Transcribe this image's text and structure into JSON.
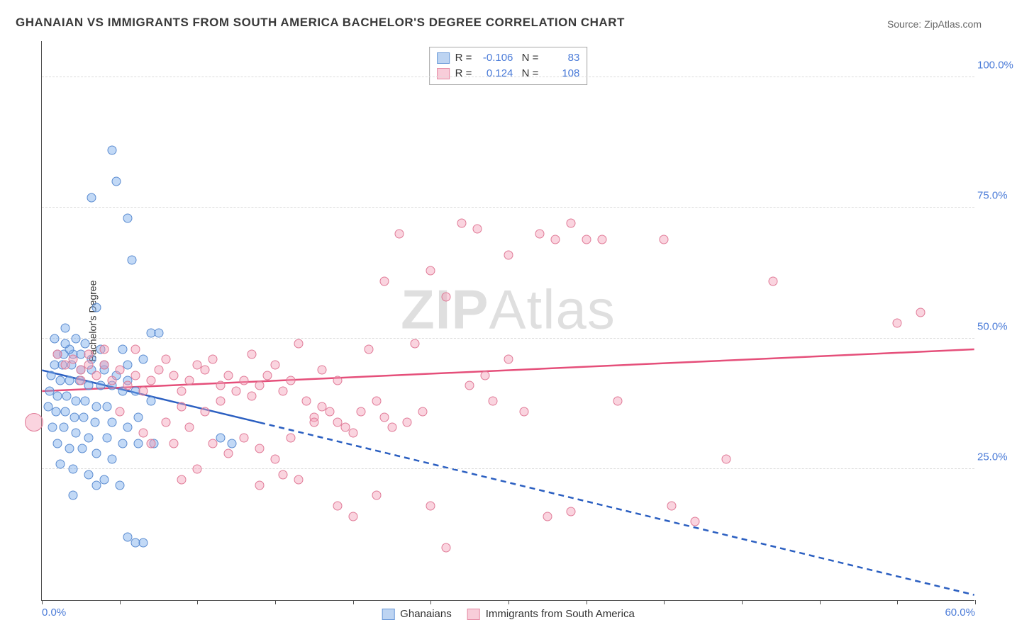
{
  "title": "GHANAIAN VS IMMIGRANTS FROM SOUTH AMERICA BACHELOR'S DEGREE CORRELATION CHART",
  "source": "Source: ZipAtlas.com",
  "ylabel": "Bachelor's Degree",
  "watermark": {
    "bold": "ZIP",
    "rest": "Atlas"
  },
  "chart": {
    "type": "scatter",
    "xlim": [
      0,
      60
    ],
    "ylim": [
      0,
      107
    ],
    "y_ticks": [
      {
        "v": 25,
        "label": "25.0%"
      },
      {
        "v": 50,
        "label": "50.0%"
      },
      {
        "v": 75,
        "label": "75.0%"
      },
      {
        "v": 100,
        "label": "100.0%"
      }
    ],
    "x_ticks": [
      {
        "v": 0,
        "label": "0.0%"
      },
      {
        "v": 5,
        "label": ""
      },
      {
        "v": 10,
        "label": ""
      },
      {
        "v": 15,
        "label": ""
      },
      {
        "v": 20,
        "label": ""
      },
      {
        "v": 25,
        "label": ""
      },
      {
        "v": 30,
        "label": ""
      },
      {
        "v": 35,
        "label": ""
      },
      {
        "v": 40,
        "label": ""
      },
      {
        "v": 45,
        "label": ""
      },
      {
        "v": 50,
        "label": ""
      },
      {
        "v": 55,
        "label": ""
      },
      {
        "v": 60,
        "label": "60.0%"
      }
    ],
    "background_color": "#ffffff",
    "grid_color": "#dcdcdc",
    "axis_color": "#505050",
    "marker_size": 13,
    "marker_border": 1,
    "series": [
      {
        "name": "Ghanaians",
        "fill": "rgba(120,170,235,0.45)",
        "stroke": "#5a8bd0",
        "swatch_fill": "#bdd4f2",
        "swatch_stroke": "#6a99d8",
        "R": "-0.106",
        "N": "83",
        "trend": {
          "color": "#2b5fc1",
          "width": 2.5,
          "solid": {
            "x1": 0,
            "y1": 44,
            "x2": 14,
            "y2": 34
          },
          "dashed": {
            "x1": 14,
            "y1": 34,
            "x2": 60,
            "y2": 1
          }
        },
        "points": [
          [
            4.5,
            86
          ],
          [
            4.8,
            80
          ],
          [
            3.2,
            77
          ],
          [
            5.5,
            73
          ],
          [
            5.8,
            65
          ],
          [
            3.5,
            56
          ],
          [
            1.5,
            52
          ],
          [
            2.2,
            50
          ],
          [
            7.0,
            51
          ],
          [
            7.5,
            51
          ],
          [
            3.8,
            48
          ],
          [
            5.2,
            48
          ],
          [
            1.0,
            47
          ],
          [
            1.4,
            47
          ],
          [
            2.0,
            47
          ],
          [
            2.8,
            49
          ],
          [
            0.8,
            45
          ],
          [
            1.3,
            45
          ],
          [
            1.9,
            45
          ],
          [
            2.5,
            44
          ],
          [
            3.2,
            44
          ],
          [
            4.0,
            44
          ],
          [
            5.5,
            45
          ],
          [
            6.5,
            46
          ],
          [
            0.6,
            43
          ],
          [
            1.2,
            42
          ],
          [
            1.8,
            42
          ],
          [
            2.4,
            42
          ],
          [
            3.0,
            41
          ],
          [
            3.8,
            41
          ],
          [
            4.5,
            41
          ],
          [
            5.2,
            40
          ],
          [
            6.0,
            40
          ],
          [
            0.5,
            40
          ],
          [
            1.0,
            39
          ],
          [
            1.6,
            39
          ],
          [
            2.2,
            38
          ],
          [
            2.8,
            38
          ],
          [
            3.5,
            37
          ],
          [
            4.2,
            37
          ],
          [
            0.4,
            37
          ],
          [
            0.9,
            36
          ],
          [
            1.5,
            36
          ],
          [
            2.1,
            35
          ],
          [
            2.7,
            35
          ],
          [
            3.4,
            34
          ],
          [
            4.5,
            34
          ],
          [
            5.5,
            33
          ],
          [
            0.7,
            33
          ],
          [
            1.4,
            33
          ],
          [
            2.2,
            32
          ],
          [
            3.0,
            31
          ],
          [
            4.2,
            31
          ],
          [
            5.2,
            30
          ],
          [
            6.2,
            30
          ],
          [
            7.2,
            30
          ],
          [
            11.5,
            31
          ],
          [
            12.2,
            30
          ],
          [
            1.0,
            30
          ],
          [
            1.8,
            29
          ],
          [
            2.6,
            29
          ],
          [
            3.5,
            28
          ],
          [
            4.5,
            27
          ],
          [
            1.2,
            26
          ],
          [
            2.0,
            25
          ],
          [
            3.0,
            24
          ],
          [
            4.0,
            23
          ],
          [
            3.5,
            22
          ],
          [
            5.0,
            22
          ],
          [
            2.0,
            20
          ],
          [
            5.5,
            12
          ],
          [
            6.0,
            11
          ],
          [
            6.5,
            11
          ],
          [
            1.8,
            48
          ],
          [
            2.5,
            47
          ],
          [
            3.2,
            46
          ],
          [
            4.0,
            45
          ],
          [
            0.8,
            50
          ],
          [
            1.5,
            49
          ],
          [
            4.8,
            43
          ],
          [
            5.5,
            42
          ],
          [
            6.2,
            35
          ],
          [
            7.0,
            38
          ]
        ]
      },
      {
        "name": "Immigrants from South America",
        "fill": "rgba(245,160,185,0.45)",
        "stroke": "#e07a97",
        "swatch_fill": "#f8cdd9",
        "swatch_stroke": "#e58aa4",
        "R": "0.124",
        "N": "108",
        "trend": {
          "color": "#e54f7a",
          "width": 2.5,
          "solid": {
            "x1": 0,
            "y1": 40,
            "x2": 60,
            "y2": 48
          },
          "dashed": null
        },
        "points": [
          [
            -0.5,
            34
          ],
          [
            1.0,
            47
          ],
          [
            1.5,
            45
          ],
          [
            2.0,
            46
          ],
          [
            2.5,
            44
          ],
          [
            3.0,
            45
          ],
          [
            3.5,
            43
          ],
          [
            4.0,
            45
          ],
          [
            4.5,
            42
          ],
          [
            5.0,
            44
          ],
          [
            5.5,
            41
          ],
          [
            6.0,
            43
          ],
          [
            6.5,
            40
          ],
          [
            7.0,
            42
          ],
          [
            7.5,
            44
          ],
          [
            8.0,
            46
          ],
          [
            8.5,
            43
          ],
          [
            9.0,
            40
          ],
          [
            9.5,
            42
          ],
          [
            10.0,
            45
          ],
          [
            10.5,
            44
          ],
          [
            11.0,
            46
          ],
          [
            11.5,
            41
          ],
          [
            12.0,
            43
          ],
          [
            12.5,
            40
          ],
          [
            13.0,
            42
          ],
          [
            13.5,
            39
          ],
          [
            14.0,
            41
          ],
          [
            14.5,
            43
          ],
          [
            15.0,
            45
          ],
          [
            15.5,
            40
          ],
          [
            16.0,
            42
          ],
          [
            16.5,
            49
          ],
          [
            17.0,
            38
          ],
          [
            17.5,
            35
          ],
          [
            18.0,
            37
          ],
          [
            18.5,
            36
          ],
          [
            19.0,
            34
          ],
          [
            19.5,
            33
          ],
          [
            20.0,
            32
          ],
          [
            20.5,
            36
          ],
          [
            21.0,
            48
          ],
          [
            21.5,
            38
          ],
          [
            22.0,
            35
          ],
          [
            22.5,
            33
          ],
          [
            11.0,
            30
          ],
          [
            12.0,
            28
          ],
          [
            13.0,
            31
          ],
          [
            14.0,
            29
          ],
          [
            15.0,
            27
          ],
          [
            16.0,
            31
          ],
          [
            9.0,
            23
          ],
          [
            10.0,
            25
          ],
          [
            14.0,
            22
          ],
          [
            15.5,
            24
          ],
          [
            16.5,
            23
          ],
          [
            17.5,
            34
          ],
          [
            19.0,
            18
          ],
          [
            20.0,
            16
          ],
          [
            21.5,
            20
          ],
          [
            25.0,
            18
          ],
          [
            26.0,
            10
          ],
          [
            22.0,
            61
          ],
          [
            23.0,
            70
          ],
          [
            24.0,
            49
          ],
          [
            25.0,
            63
          ],
          [
            26.0,
            58
          ],
          [
            27.0,
            72
          ],
          [
            28.0,
            71
          ],
          [
            29.0,
            38
          ],
          [
            30.0,
            66
          ],
          [
            31.0,
            36
          ],
          [
            32.0,
            70
          ],
          [
            33.0,
            69
          ],
          [
            34.0,
            72
          ],
          [
            35.0,
            69
          ],
          [
            36.0,
            69
          ],
          [
            37.0,
            38
          ],
          [
            40.0,
            69
          ],
          [
            40.5,
            18
          ],
          [
            42.0,
            15
          ],
          [
            44.0,
            27
          ],
          [
            47.0,
            61
          ],
          [
            55.0,
            53
          ],
          [
            56.5,
            55
          ],
          [
            32.5,
            16
          ],
          [
            34.0,
            17
          ],
          [
            23.5,
            34
          ],
          [
            24.5,
            36
          ],
          [
            27.5,
            41
          ],
          [
            28.5,
            43
          ],
          [
            30.0,
            46
          ],
          [
            8.0,
            34
          ],
          [
            9.5,
            33
          ],
          [
            7.0,
            30
          ],
          [
            6.5,
            32
          ],
          [
            10.5,
            36
          ],
          [
            11.5,
            38
          ],
          [
            5.0,
            36
          ],
          [
            6.0,
            48
          ],
          [
            4.0,
            48
          ],
          [
            3.0,
            47
          ],
          [
            2.5,
            42
          ],
          [
            18.0,
            44
          ],
          [
            19.0,
            42
          ],
          [
            8.5,
            30
          ],
          [
            9.0,
            37
          ],
          [
            13.5,
            47
          ]
        ]
      }
    ],
    "legend": [
      {
        "label": "Ghanaians",
        "fill": "#bdd4f2",
        "stroke": "#6a99d8"
      },
      {
        "label": "Immigrants from South America",
        "fill": "#f8cdd9",
        "stroke": "#e58aa4"
      }
    ]
  }
}
